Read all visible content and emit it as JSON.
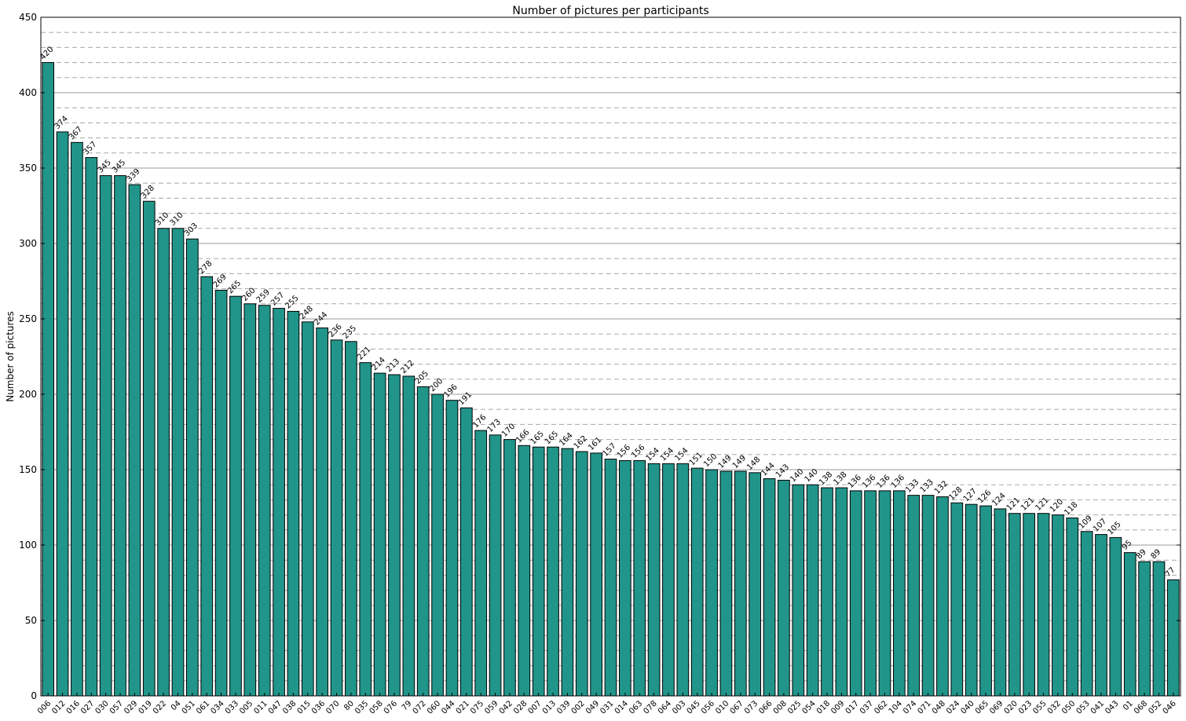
{
  "chart_data": {
    "type": "bar",
    "title": "Number of pictures per participants",
    "xlabel": "",
    "ylabel": "Number of pictures",
    "ylim": [
      0,
      450
    ],
    "yticks": [
      0,
      50,
      100,
      150,
      200,
      250,
      300,
      350,
      400,
      450
    ],
    "grid": true,
    "bar_color": "#21958a",
    "bar_edge_color": "#000000",
    "categories": [
      "006",
      "012",
      "016",
      "027",
      "030",
      "057",
      "029",
      "019",
      "022",
      "04",
      "051",
      "061",
      "034",
      "033",
      "005",
      "011",
      "047",
      "038",
      "015",
      "036",
      "070",
      "80",
      "035",
      "058",
      "076",
      "79",
      "072",
      "060",
      "044",
      "021",
      "075",
      "059",
      "042",
      "028",
      "007",
      "013",
      "039",
      "002",
      "049",
      "031",
      "014",
      "063",
      "078",
      "064",
      "003",
      "045",
      "056",
      "010",
      "067",
      "073",
      "066",
      "008",
      "025",
      "054",
      "018",
      "009",
      "017",
      "037",
      "062",
      "104",
      "074",
      "071",
      "048",
      "024",
      "040",
      "065",
      "069",
      "020",
      "023",
      "055",
      "032",
      "050",
      "053",
      "041",
      "043",
      "01",
      "068",
      "052",
      "046"
    ],
    "values": [
      420,
      374,
      367,
      357,
      345,
      345,
      339,
      328,
      310,
      310,
      303,
      278,
      269,
      265,
      260,
      259,
      257,
      255,
      248,
      244,
      236,
      235,
      221,
      214,
      213,
      212,
      205,
      200,
      196,
      191,
      176,
      173,
      170,
      166,
      165,
      165,
      164,
      162,
      161,
      157,
      156,
      156,
      154,
      154,
      154,
      151,
      150,
      149,
      149,
      148,
      144,
      143,
      140,
      140,
      138,
      138,
      136,
      136,
      136,
      136,
      133,
      133,
      132,
      128,
      127,
      126,
      124,
      121,
      121,
      121,
      120,
      118,
      109,
      107,
      105,
      95,
      89,
      89,
      77
    ]
  }
}
